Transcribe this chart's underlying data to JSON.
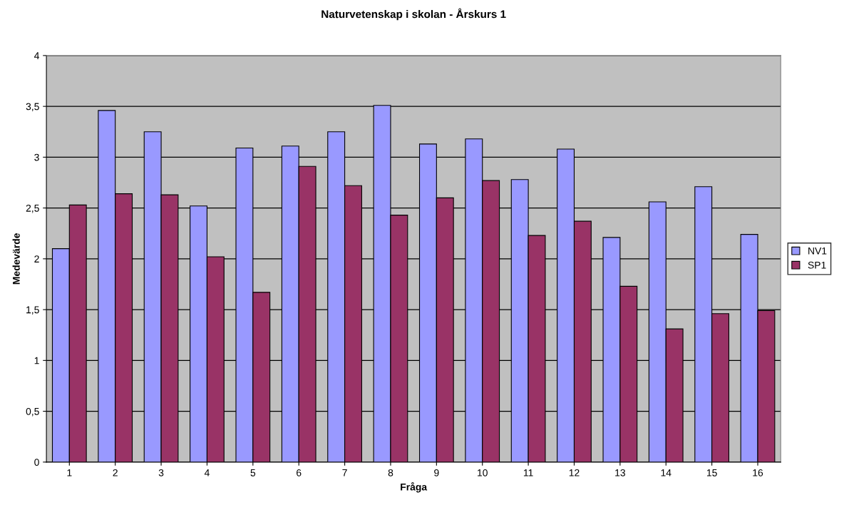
{
  "chart_data": {
    "type": "bar",
    "title": "Naturvetenskap i skolan - Årskurs 1",
    "xlabel": "Fråga",
    "ylabel": "Medevärde",
    "categories": [
      "1",
      "2",
      "3",
      "4",
      "5",
      "6",
      "7",
      "8",
      "9",
      "10",
      "11",
      "12",
      "13",
      "14",
      "15",
      "16"
    ],
    "series": [
      {
        "name": "NV1",
        "color": "#9999ff",
        "values": [
          2.1,
          3.46,
          3.25,
          2.52,
          3.09,
          3.11,
          3.25,
          3.51,
          3.13,
          3.18,
          2.78,
          3.08,
          2.21,
          2.56,
          2.71,
          2.24
        ]
      },
      {
        "name": "SP1",
        "color": "#993366",
        "values": [
          2.53,
          2.64,
          2.63,
          2.02,
          1.67,
          2.91,
          2.72,
          2.43,
          2.6,
          2.77,
          2.23,
          2.37,
          1.73,
          1.31,
          1.46,
          1.49
        ]
      }
    ],
    "ylim": [
      0,
      4
    ],
    "yticks": [
      0,
      {
        "value": 0.5,
        "label": "0,5"
      },
      1,
      {
        "value": 1.5,
        "label": "1,5"
      },
      2,
      {
        "value": 2.5,
        "label": "2,5"
      },
      3,
      {
        "value": 3.5,
        "label": "3,5"
      },
      4
    ],
    "grid": "y",
    "legend": "right"
  }
}
